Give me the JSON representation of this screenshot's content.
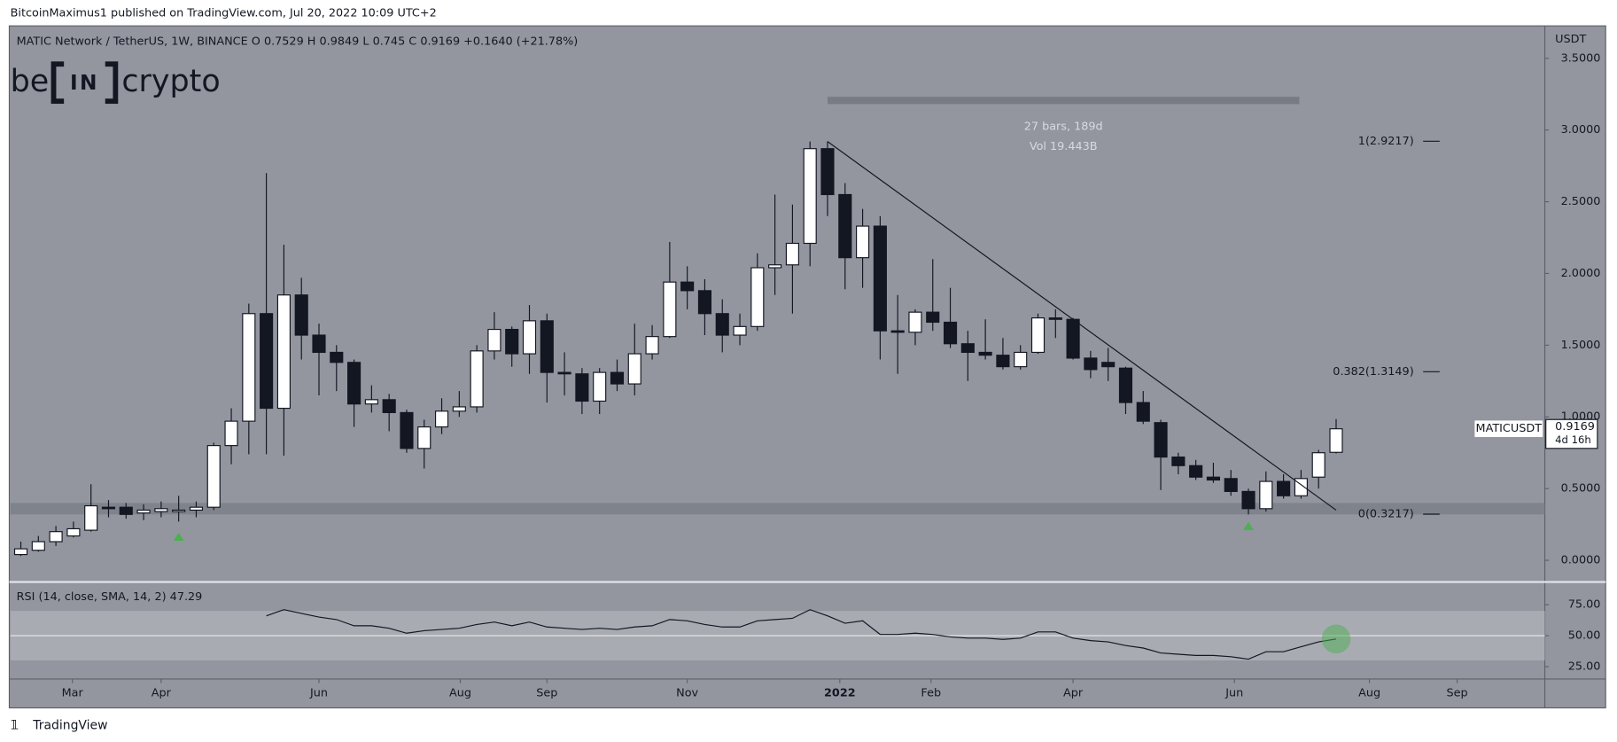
{
  "header": {
    "publisher": "BitcoinMaximus1 published on TradingView.com, Jul 20, 2022 10:09 UTC+2"
  },
  "footer": {
    "brand": "TradingView"
  },
  "logo": {
    "left": "be",
    "box": "IN",
    "right": "crypto"
  },
  "chart_data": {
    "type": "candlestick",
    "title": "MATIC Network / TetherUS, 1W, BINANCE",
    "ohlc_labels": [
      "O",
      "H",
      "L",
      "C"
    ],
    "change": "+0.1640 (+21.78%)",
    "symbol": "MATICUSDT",
    "countdown": "4d 16h",
    "y_unit": "USDT",
    "up_color": "#ffffff",
    "down_color": "#131722",
    "open": [
      0.04,
      0.07,
      0.13,
      0.17,
      0.21,
      0.37,
      0.37,
      0.33,
      0.34,
      0.34,
      0.35,
      0.37,
      0.8,
      0.97,
      1.72,
      1.06,
      1.85,
      1.57,
      1.45,
      1.38,
      1.09,
      1.12,
      1.03,
      0.78,
      0.93,
      1.04,
      1.07,
      1.46,
      1.61,
      1.44,
      1.67,
      1.31,
      1.3,
      1.11,
      1.31,
      1.23,
      1.44,
      1.56,
      1.94,
      1.88,
      1.72,
      1.57,
      1.63,
      2.04,
      2.06,
      2.21,
      2.87,
      2.55,
      2.11,
      2.33,
      1.6,
      1.59,
      1.73,
      1.66,
      1.51,
      1.45,
      1.43,
      1.35,
      1.45,
      1.69,
      1.68,
      1.41,
      1.38,
      1.34,
      1.1,
      0.96,
      0.72,
      0.66,
      0.58,
      0.57,
      0.48,
      0.36,
      0.55,
      0.45,
      0.58,
      0.7529
    ],
    "high": [
      0.13,
      0.17,
      0.24,
      0.27,
      0.53,
      0.42,
      0.4,
      0.39,
      0.41,
      0.45,
      0.41,
      0.82,
      1.06,
      1.79,
      2.7,
      2.2,
      1.97,
      1.65,
      1.5,
      1.4,
      1.22,
      1.16,
      1.05,
      0.98,
      1.13,
      1.18,
      1.5,
      1.73,
      1.63,
      1.78,
      1.72,
      1.45,
      1.34,
      1.34,
      1.4,
      1.65,
      1.64,
      2.22,
      2.05,
      1.96,
      1.82,
      1.72,
      2.14,
      2.55,
      2.48,
      2.92,
      2.92,
      2.63,
      2.45,
      2.4,
      1.85,
      1.75,
      2.1,
      1.9,
      1.6,
      1.68,
      1.55,
      1.5,
      1.72,
      1.75,
      1.69,
      1.46,
      1.48,
      1.35,
      1.18,
      0.98,
      0.75,
      0.7,
      0.68,
      0.63,
      0.5,
      0.62,
      0.6,
      0.63,
      0.77,
      0.9849
    ],
    "low": [
      0.03,
      0.06,
      0.1,
      0.16,
      0.2,
      0.3,
      0.29,
      0.28,
      0.3,
      0.27,
      0.3,
      0.35,
      0.67,
      0.74,
      0.74,
      0.73,
      1.4,
      1.15,
      1.18,
      0.93,
      1.03,
      0.9,
      0.75,
      0.64,
      0.88,
      1.0,
      1.03,
      1.4,
      1.35,
      1.3,
      1.1,
      1.15,
      1.02,
      1.02,
      1.18,
      1.15,
      1.4,
      1.55,
      1.75,
      1.57,
      1.45,
      1.5,
      1.6,
      1.85,
      1.72,
      2.05,
      2.4,
      1.89,
      1.9,
      1.4,
      1.3,
      1.5,
      1.6,
      1.48,
      1.25,
      1.4,
      1.33,
      1.33,
      1.44,
      1.55,
      1.4,
      1.27,
      1.25,
      1.02,
      0.95,
      0.49,
      0.6,
      0.56,
      0.54,
      0.45,
      0.32,
      0.34,
      0.43,
      0.43,
      0.5,
      0.745
    ],
    "close": [
      0.08,
      0.13,
      0.2,
      0.22,
      0.38,
      0.36,
      0.32,
      0.35,
      0.36,
      0.35,
      0.37,
      0.8,
      0.97,
      1.72,
      1.06,
      1.85,
      1.57,
      1.45,
      1.38,
      1.09,
      1.12,
      1.03,
      0.78,
      0.93,
      1.04,
      1.07,
      1.46,
      1.61,
      1.44,
      1.67,
      1.31,
      1.3,
      1.11,
      1.31,
      1.23,
      1.44,
      1.56,
      1.94,
      1.88,
      1.72,
      1.57,
      1.63,
      2.04,
      2.06,
      2.21,
      2.87,
      2.55,
      2.11,
      2.33,
      1.6,
      1.59,
      1.73,
      1.66,
      1.51,
      1.45,
      1.43,
      1.35,
      1.45,
      1.69,
      1.68,
      1.41,
      1.33,
      1.35,
      1.1,
      0.97,
      0.72,
      0.66,
      0.58,
      0.56,
      0.48,
      0.36,
      0.55,
      0.45,
      0.57,
      0.75,
      0.9169
    ],
    "xlim": [
      -0.6,
      86.9
    ],
    "xticks": [
      {
        "value": 2.94,
        "label": "Mar"
      },
      {
        "value": 8,
        "label": "Apr"
      },
      {
        "value": 17,
        "label": "Jun"
      },
      {
        "value": 25.06,
        "label": "Aug"
      },
      {
        "value": 30,
        "label": "Sep"
      },
      {
        "value": 38,
        "label": "Nov"
      },
      {
        "value": 46.7,
        "label": "2022"
      },
      {
        "value": 51.9,
        "label": "Feb"
      },
      {
        "value": 60,
        "label": "Apr"
      },
      {
        "value": 69.2,
        "label": "Jun"
      },
      {
        "value": 76.9,
        "label": "Aug"
      },
      {
        "value": 81.9,
        "label": "Sep"
      }
    ],
    "ylim": [
      -0.144,
      3.719
    ],
    "yticks": [
      {
        "value": 0,
        "label": "0.0000"
      },
      {
        "value": 0.5,
        "label": "0.5000"
      },
      {
        "value": 1,
        "label": "1.0000"
      },
      {
        "value": 1.5,
        "label": "1.5000"
      },
      {
        "value": 2,
        "label": "2.0000"
      },
      {
        "value": 2.5,
        "label": "2.5000"
      },
      {
        "value": 3,
        "label": "3.0000"
      },
      {
        "value": 3.5,
        "label": "3.5000"
      }
    ],
    "support_zone": [
      0.32,
      0.4
    ],
    "trendline": {
      "from": [
        46,
        2.92
      ],
      "to": [
        75,
        0.35
      ]
    },
    "measure": {
      "range": [
        46,
        72.9
      ],
      "price": 3.21,
      "bars": "27 bars, 189d",
      "volume": "Vol 19.443B"
    },
    "fib": [
      {
        "label": "1(2.9217)",
        "price": 2.9217
      },
      {
        "label": "0.382(1.3149)",
        "price": 1.3149
      },
      {
        "label": "0(0.3217)",
        "price": 0.3217
      }
    ],
    "markers": [
      {
        "index": 9,
        "price": 0.165
      },
      {
        "index": 70,
        "price": 0.24
      }
    ],
    "rsi": {
      "label": "RSI (14, close, SMA, 14, 2)",
      "color": "#131722",
      "values": [
        null,
        null,
        null,
        null,
        null,
        null,
        null,
        null,
        null,
        null,
        null,
        null,
        null,
        null,
        66,
        71,
        68,
        65,
        63,
        58,
        58,
        56,
        52,
        54,
        55,
        56,
        59,
        61,
        58,
        61,
        57,
        56,
        55,
        56,
        55,
        57,
        58,
        63,
        62,
        59,
        57,
        57,
        62,
        63,
        64,
        71,
        66,
        60,
        62,
        51,
        51,
        52,
        51,
        49,
        48,
        48,
        47,
        48,
        53,
        53,
        48,
        46,
        45,
        42,
        40,
        36,
        35,
        34,
        34,
        33,
        31,
        37,
        37,
        41,
        45,
        47.29
      ],
      "ylim": [
        15,
        92.5
      ],
      "band": [
        30,
        70
      ],
      "midline": 50,
      "yticks": [
        {
          "value": 75,
          "label": "75.00"
        },
        {
          "value": 50,
          "label": "50.00"
        },
        {
          "value": 25,
          "label": "25.00"
        }
      ]
    }
  }
}
